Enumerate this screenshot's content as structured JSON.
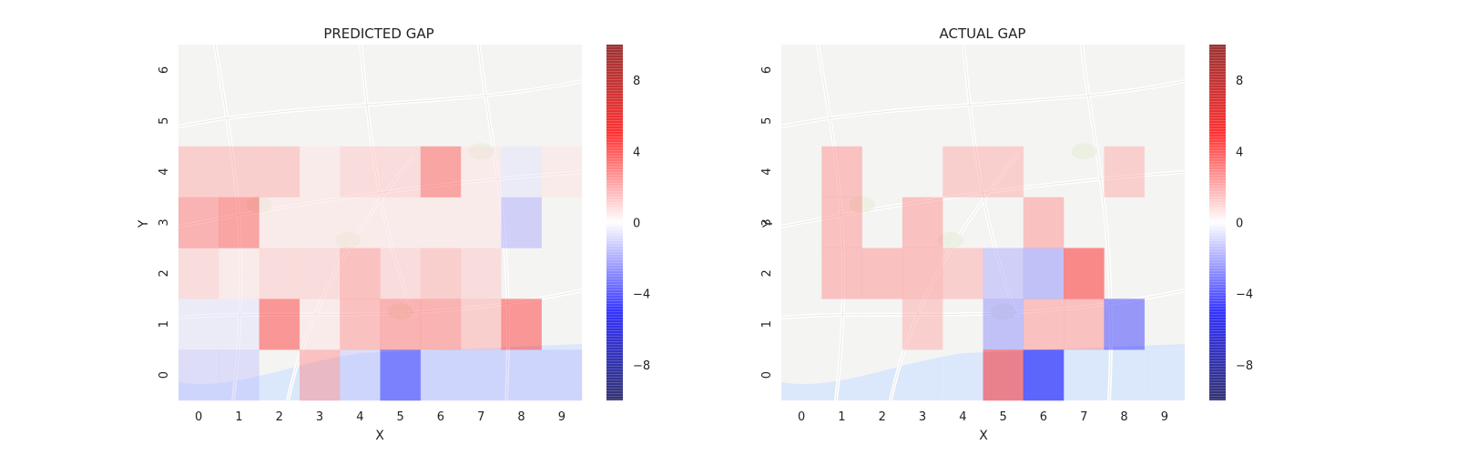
{
  "chart_data": [
    {
      "type": "heatmap",
      "title": "PREDICTED GAP",
      "xlabel": "X",
      "ylabel": "Y",
      "x_ticks": [
        "0",
        "1",
        "2",
        "3",
        "4",
        "5",
        "6",
        "7",
        "8",
        "9"
      ],
      "y_ticks": [
        "0",
        "1",
        "2",
        "3",
        "4",
        "5",
        "6"
      ],
      "colormap": "seismic",
      "vmin": -10,
      "vmax": 10,
      "colorbar_ticks": [
        -8,
        -4,
        0,
        4,
        8
      ],
      "background": "street map",
      "values": [
        [
          -1,
          -1,
          0,
          2,
          -1,
          -4,
          -1,
          -1,
          -1,
          -1
        ],
        [
          -0.5,
          -0.5,
          3.5,
          0.5,
          2,
          2.5,
          2.5,
          1.5,
          3.5,
          0
        ],
        [
          1,
          0.5,
          1,
          1,
          2,
          1,
          1.5,
          1,
          0,
          0
        ],
        [
          2.5,
          3,
          0.5,
          0.5,
          0.5,
          0.5,
          0.5,
          0.5,
          -1.5,
          0
        ],
        [
          1.5,
          1.5,
          1.5,
          0.5,
          1,
          1,
          3,
          0.5,
          -0.5,
          0.5
        ],
        [
          0,
          0,
          0,
          0,
          0,
          0,
          0,
          0,
          0,
          0
        ],
        [
          0,
          0,
          0,
          0,
          0,
          0,
          0,
          0,
          0,
          0
        ]
      ]
    },
    {
      "type": "heatmap",
      "title": "ACTUAL GAP",
      "xlabel": "X",
      "ylabel": "Y",
      "x_ticks": [
        "0",
        "1",
        "2",
        "3",
        "4",
        "5",
        "6",
        "7",
        "8",
        "9"
      ],
      "y_ticks": [
        "0",
        "1",
        "2",
        "3",
        "4",
        "5",
        "6"
      ],
      "colormap": "seismic",
      "vmin": -10,
      "vmax": 10,
      "colorbar_ticks": [
        -8,
        -4,
        0,
        4,
        8
      ],
      "background": "street map",
      "values": [
        [
          0,
          0,
          0,
          0,
          0,
          4,
          -5,
          0,
          0,
          0
        ],
        [
          0,
          0,
          0,
          1.5,
          0,
          -2,
          2,
          2,
          -3.5,
          0
        ],
        [
          0,
          2,
          2,
          2,
          1.5,
          -1.5,
          -2,
          4,
          0,
          0
        ],
        [
          0,
          2,
          0,
          2,
          0,
          0,
          2,
          0,
          0,
          0
        ],
        [
          0,
          2,
          0,
          0,
          1.5,
          1.5,
          0,
          0,
          1.5,
          0
        ],
        [
          0,
          0,
          0,
          0,
          0,
          0,
          0,
          0,
          0,
          0
        ],
        [
          0,
          0,
          0,
          0,
          0,
          0,
          0,
          0,
          0,
          0
        ]
      ]
    }
  ]
}
